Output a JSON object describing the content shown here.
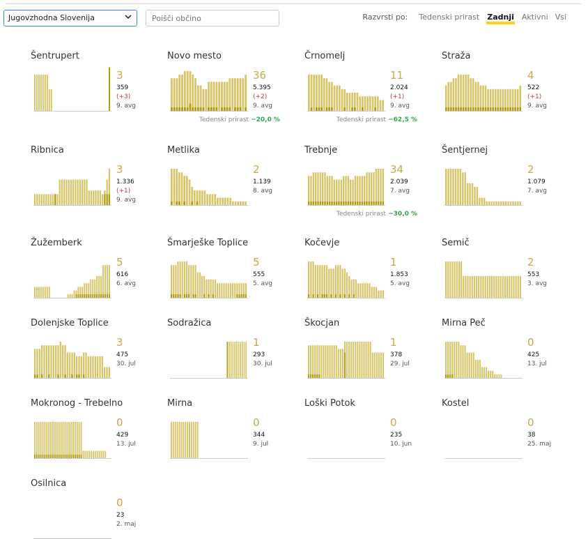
{
  "toolbar": {
    "region_value": "Jugovzhodna Slovenija",
    "search_placeholder": "Poišči občino",
    "sort_label": "Razvrsti po:",
    "sort_options": [
      "Tedenski prirast",
      "Zadnji",
      "Aktivni",
      "Vsi"
    ],
    "sort_active": "Zadnji"
  },
  "colors": {
    "bar": "#d6c569",
    "bar_dark": "#b59b14",
    "accent": "#f7d51d",
    "positive": "#2fa84f",
    "negative": "#b0413e"
  },
  "municipalities": [
    {
      "name": "Šentrupert",
      "active": "3",
      "total": "359",
      "delta": "(+3)",
      "note": "9. avg",
      "weekly_label": "",
      "weekly_value": "",
      "bars": [
        10,
        10,
        10,
        10,
        10,
        10,
        10,
        6,
        6,
        0,
        0,
        0,
        0,
        0,
        0,
        0,
        0,
        0,
        0,
        0,
        0,
        0,
        0,
        0,
        0,
        0,
        0,
        0,
        0,
        0,
        0,
        0,
        0,
        0,
        0,
        0,
        12
      ],
      "dark": [
        0,
        0,
        0,
        0,
        0,
        0,
        0,
        0,
        0,
        0,
        0,
        0,
        0,
        0,
        0,
        0,
        0,
        0,
        0,
        0,
        0,
        0,
        0,
        0,
        0,
        0,
        0,
        0,
        0,
        0,
        0,
        0,
        0,
        0,
        0,
        0,
        12
      ]
    },
    {
      "name": "Novo mesto",
      "active": "36",
      "total": "5.395",
      "delta": "(+2)",
      "note": "9. avg",
      "weekly_label": "Tedenski prirast",
      "weekly_value": "−20,0 %",
      "bars": [
        9,
        9,
        9,
        10,
        10,
        11,
        11,
        11,
        10,
        9,
        7,
        7,
        6,
        6,
        8,
        8,
        8,
        8,
        8,
        8,
        8,
        8,
        9,
        9,
        9,
        9,
        9,
        9,
        10
      ],
      "dark": [
        1,
        1,
        1,
        1,
        1,
        1,
        1,
        2,
        1,
        1,
        1,
        1,
        1,
        0,
        1,
        1,
        1,
        1,
        0,
        1,
        1,
        1,
        1,
        0,
        1,
        1,
        1,
        0,
        1
      ]
    },
    {
      "name": "Črnomelj",
      "active": "11",
      "total": "2.024",
      "delta": "(+1)",
      "note": "9. avg",
      "weekly_label": "Tedenski prirast",
      "weekly_value": "−62,5 %",
      "bars": [
        10,
        10,
        10,
        10,
        10,
        10,
        9,
        9,
        8,
        8,
        7,
        7,
        7,
        6,
        6,
        5,
        5,
        5,
        5,
        5,
        4,
        4,
        4,
        4,
        4,
        4,
        4,
        4,
        3,
        3
      ],
      "dark": [
        0,
        1,
        0,
        1,
        1,
        1,
        0,
        1,
        1,
        1,
        0,
        0,
        0,
        0,
        1,
        0,
        0,
        1,
        1,
        0,
        0,
        1,
        0,
        0,
        0,
        0,
        1,
        0,
        0,
        0
      ]
    },
    {
      "name": "Straža",
      "active": "4",
      "total": "522",
      "delta": "(+1)",
      "note": "9. avg",
      "weekly_label": "",
      "weekly_value": "",
      "bars": [
        7,
        8,
        8,
        9,
        9,
        10,
        10,
        10,
        10,
        10,
        9,
        9,
        8,
        8,
        7,
        7,
        7,
        6,
        6,
        6,
        6,
        6,
        6,
        6,
        6,
        6,
        6,
        6,
        6,
        6,
        7
      ],
      "dark": [
        1,
        1,
        1,
        1,
        1,
        1,
        1,
        1,
        1,
        1,
        1,
        1,
        1,
        1,
        1,
        1,
        1,
        1,
        1,
        1,
        1,
        1,
        1,
        1,
        1,
        1,
        1,
        1,
        1,
        1,
        1
      ]
    },
    {
      "name": "Ribnica",
      "active": "3",
      "total": "1.336",
      "delta": "(+1)",
      "note": "9. avg",
      "weekly_label": "",
      "weekly_value": "",
      "bars": [
        3,
        3,
        3,
        3,
        3,
        3,
        3,
        3,
        3,
        3,
        3,
        7,
        7,
        7,
        7,
        7,
        7,
        7,
        7,
        7,
        7,
        7,
        7,
        7,
        4,
        4,
        4,
        4,
        4,
        4,
        3,
        4,
        7,
        10
      ],
      "dark": [
        0,
        0,
        0,
        0,
        0,
        0,
        0,
        0,
        0,
        3,
        0,
        0,
        0,
        0,
        0,
        0,
        0,
        0,
        0,
        0,
        0,
        0,
        0,
        0,
        0,
        0,
        0,
        0,
        0,
        0,
        0,
        3,
        3,
        3
      ]
    },
    {
      "name": "Metlika",
      "active": "2",
      "total": "1.139",
      "delta": "",
      "note": "8. avg",
      "weekly_label": "",
      "weekly_value": "",
      "bars": [
        10,
        10,
        10,
        9,
        9,
        8,
        8,
        7,
        5,
        4,
        4,
        4,
        4,
        4,
        3,
        3,
        3,
        3,
        2,
        2,
        2,
        2,
        2,
        2,
        1,
        1,
        1,
        1,
        1,
        1
      ],
      "dark": [
        1,
        0,
        1,
        1,
        0,
        1,
        0,
        0,
        1,
        0,
        1,
        0,
        0,
        0,
        0,
        0,
        0,
        0,
        0,
        0,
        0,
        0,
        0,
        0,
        0,
        0,
        0,
        0,
        0,
        0
      ]
    },
    {
      "name": "Trebnje",
      "active": "34",
      "total": "2.039",
      "delta": "",
      "note": "7. avg",
      "weekly_label": "Tedenski prirast",
      "weekly_value": "−30,0 %",
      "bars": [
        8,
        8,
        9,
        9,
        9,
        9,
        9,
        9,
        8,
        8,
        8,
        7,
        7,
        7,
        7,
        8,
        8,
        8,
        7,
        7,
        8,
        8,
        8,
        8,
        8,
        9,
        9,
        9,
        9,
        10,
        10,
        10,
        10
      ],
      "dark": [
        1,
        1,
        1,
        1,
        1,
        1,
        1,
        1,
        1,
        1,
        1,
        1,
        1,
        1,
        1,
        1,
        1,
        1,
        1,
        1,
        1,
        1,
        1,
        1,
        1,
        1,
        1,
        1,
        1,
        1,
        1,
        1,
        1
      ]
    },
    {
      "name": "Šentjernej",
      "active": "2",
      "total": "1.079",
      "delta": "",
      "note": "7. avg",
      "weekly_label": "",
      "weekly_value": "",
      "bars": [
        10,
        10,
        10,
        10,
        10,
        10,
        10,
        9,
        9,
        6,
        6,
        6,
        5,
        5,
        2,
        2,
        2,
        1,
        1,
        1,
        1,
        1,
        1,
        1,
        1,
        1,
        1,
        1,
        1,
        1,
        1,
        1
      ],
      "dark": [
        0,
        0,
        0,
        0,
        0,
        0,
        0,
        0,
        0,
        0,
        0,
        0,
        0,
        0,
        0,
        0,
        0,
        0,
        0,
        0,
        0,
        0,
        0,
        0,
        0,
        0,
        0,
        0,
        0,
        0,
        0,
        0
      ]
    },
    {
      "name": "Žužemberk",
      "active": "5",
      "total": "616",
      "delta": "",
      "note": "6. avg",
      "weekly_label": "",
      "weekly_value": "",
      "bars": [
        3,
        3,
        3,
        3,
        3,
        3,
        3,
        3,
        0,
        0,
        0,
        0,
        0,
        0,
        0,
        0,
        1,
        1,
        1,
        2,
        2,
        3,
        3,
        3,
        4,
        4,
        4,
        5,
        5,
        5,
        6,
        6,
        6,
        9,
        9,
        9,
        9
      ],
      "dark": [
        0,
        0,
        0,
        0,
        0,
        0,
        0,
        0,
        0,
        0,
        0,
        0,
        0,
        0,
        0,
        0,
        0,
        0,
        0,
        0,
        1,
        1,
        1,
        1,
        1,
        1,
        1,
        1,
        1,
        1,
        1,
        1,
        1,
        1,
        1,
        1,
        1
      ]
    },
    {
      "name": "Šmarješke Toplice",
      "active": "5",
      "total": "555",
      "delta": "",
      "note": "5. avg",
      "weekly_label": "",
      "weekly_value": "",
      "bars": [
        9,
        9,
        9,
        10,
        10,
        10,
        10,
        10,
        9,
        9,
        9,
        9,
        7,
        7,
        6,
        6,
        5,
        5,
        5,
        5,
        5,
        4,
        4,
        4,
        4,
        4,
        4,
        4,
        4,
        4,
        4,
        4,
        4,
        4,
        4
      ],
      "dark": [
        1,
        1,
        1,
        1,
        1,
        0,
        1,
        1,
        1,
        0,
        1,
        1,
        0,
        0,
        0,
        1,
        0,
        1,
        0,
        1,
        0,
        0,
        0,
        0,
        0,
        0,
        0,
        0,
        0,
        0,
        1,
        1,
        1,
        1,
        1
      ]
    },
    {
      "name": "Kočevje",
      "active": "1",
      "total": "1.853",
      "delta": "",
      "note": "5. avg",
      "weekly_label": "",
      "weekly_value": "",
      "bars": [
        10,
        10,
        10,
        9,
        9,
        9,
        9,
        9,
        9,
        8,
        8,
        8,
        9,
        9,
        9,
        8,
        8,
        7,
        6,
        5,
        5,
        5,
        4,
        4,
        4,
        4,
        4,
        4,
        3,
        3,
        3,
        2,
        2,
        2
      ],
      "dark": [
        1,
        0,
        1,
        0,
        1,
        0,
        1,
        1,
        1,
        0,
        1,
        0,
        1,
        0,
        1,
        0,
        1,
        0,
        1,
        0,
        1,
        0,
        0,
        0,
        0,
        0,
        0,
        0,
        0,
        0,
        0,
        0,
        0,
        0
      ]
    },
    {
      "name": "Semič",
      "active": "2",
      "total": "553",
      "delta": "",
      "note": "3. avg",
      "weekly_label": "",
      "weekly_value": "",
      "bars": [
        10,
        10,
        10,
        10,
        10,
        10,
        10,
        10,
        6,
        6,
        6,
        6,
        6,
        6,
        6,
        6,
        6,
        6,
        6,
        6,
        6,
        6,
        6,
        6,
        6,
        6,
        6,
        6,
        6,
        6,
        6,
        6,
        6,
        6,
        6
      ],
      "dark": [
        0,
        0,
        0,
        0,
        0,
        0,
        0,
        0,
        0,
        0,
        0,
        0,
        0,
        0,
        0,
        0,
        0,
        0,
        0,
        0,
        0,
        0,
        0,
        0,
        0,
        0,
        0,
        0,
        0,
        0,
        0,
        0,
        0,
        0,
        0
      ]
    },
    {
      "name": "Dolenjske Toplice",
      "active": "3",
      "total": "475",
      "delta": "",
      "note": "30. jul",
      "weekly_label": "",
      "weekly_value": "",
      "bars": [
        8,
        8,
        8,
        9,
        9,
        9,
        9,
        9,
        9,
        9,
        9,
        10,
        9,
        9,
        7,
        7,
        7,
        7,
        6,
        6,
        6,
        7,
        7,
        6,
        6,
        6,
        6,
        6,
        6,
        6,
        3,
        3,
        3
      ],
      "dark": [
        1,
        1,
        0,
        1,
        0,
        0,
        1,
        0,
        0,
        0,
        1,
        0,
        0,
        1,
        0,
        0,
        1,
        0,
        1,
        1,
        0,
        1,
        0,
        0,
        0,
        0,
        0,
        0,
        0,
        0,
        0,
        0,
        0
      ]
    },
    {
      "name": "Sodražica",
      "active": "1",
      "total": "293",
      "delta": "",
      "note": "30. jul",
      "weekly_label": "",
      "weekly_value": "",
      "bars": [
        0,
        0,
        0,
        0,
        0,
        0,
        0,
        0,
        0,
        0,
        0,
        0,
        0,
        0,
        0,
        0,
        0,
        0,
        0,
        0,
        0,
        0,
        0,
        0,
        0,
        0,
        0,
        0,
        0,
        0,
        10,
        10,
        10,
        10,
        10,
        10,
        10,
        10,
        10,
        10,
        10
      ],
      "dark": [
        0,
        0,
        0,
        0,
        0,
        0,
        0,
        0,
        0,
        0,
        0,
        0,
        0,
        0,
        0,
        0,
        0,
        0,
        0,
        0,
        0,
        0,
        0,
        0,
        0,
        0,
        0,
        0,
        0,
        0,
        10,
        0,
        0,
        0,
        0,
        0,
        0,
        0,
        0,
        0,
        0
      ]
    },
    {
      "name": "Škocjan",
      "active": "1",
      "total": "378",
      "delta": "",
      "note": "29. jul",
      "weekly_label": "",
      "weekly_value": "",
      "bars": [
        9,
        9,
        9,
        9,
        9,
        9,
        9,
        9,
        9,
        9,
        9,
        9,
        9,
        9,
        8,
        8,
        8,
        10,
        10,
        10,
        10,
        10,
        10,
        10,
        10,
        10,
        10,
        10,
        10,
        10,
        7,
        7,
        7,
        7,
        7,
        7
      ],
      "dark": [
        1,
        1,
        1,
        1,
        1,
        1,
        0,
        0,
        0,
        0,
        0,
        0,
        0,
        0,
        0,
        0,
        0,
        7,
        0,
        0,
        0,
        0,
        0,
        0,
        0,
        0,
        0,
        0,
        0,
        0,
        0,
        0,
        0,
        0,
        0,
        0
      ]
    },
    {
      "name": "Mirna Peč",
      "active": "0",
      "total": "425",
      "delta": "",
      "note": "13. jul",
      "weekly_label": "",
      "weekly_value": "",
      "bars": [
        10,
        10,
        10,
        10,
        10,
        10,
        10,
        9,
        9,
        9,
        7,
        7,
        7,
        7,
        5,
        5,
        5,
        3,
        3,
        3,
        2,
        2,
        2,
        1,
        1,
        1,
        1,
        0,
        0,
        0,
        0,
        0,
        0,
        0,
        0,
        0
      ],
      "dark": [
        1,
        1,
        1,
        1,
        0,
        0,
        0,
        0,
        0,
        0,
        0,
        0,
        0,
        0,
        0,
        0,
        0,
        0,
        0,
        0,
        0,
        0,
        0,
        0,
        0,
        0,
        0,
        0,
        0,
        0,
        0,
        0,
        0,
        0,
        0,
        0
      ]
    },
    {
      "name": "Mokronog - Trebelno",
      "active": "0",
      "total": "429",
      "delta": "",
      "note": "13. jul",
      "weekly_label": "",
      "weekly_value": "",
      "bars": [
        10,
        10,
        10,
        10,
        10,
        10,
        10,
        10,
        10,
        10,
        10,
        10,
        10,
        10,
        10,
        10,
        10,
        10,
        10,
        10,
        10,
        10,
        10,
        10,
        2,
        2,
        2,
        2,
        2,
        2,
        2,
        2,
        2,
        2,
        2,
        2,
        0,
        0
      ],
      "dark": [
        1,
        1,
        1,
        1,
        1,
        1,
        1,
        1,
        1,
        1,
        1,
        1,
        1,
        1,
        1,
        1,
        1,
        1,
        1,
        1,
        1,
        1,
        1,
        1,
        0,
        0,
        0,
        0,
        0,
        0,
        0,
        0,
        0,
        0,
        0,
        0,
        0,
        0
      ]
    },
    {
      "name": "Mirna",
      "active": "0",
      "total": "344",
      "delta": "",
      "note": "9. jul",
      "weekly_label": "",
      "weekly_value": "",
      "bars": [
        10,
        10,
        10,
        10,
        10,
        10,
        10,
        10,
        10,
        10,
        10,
        10,
        10,
        10,
        0,
        0,
        0,
        0,
        0,
        0,
        0,
        0,
        0,
        0,
        0,
        0,
        0,
        0,
        0,
        0,
        0,
        0,
        0,
        0,
        0,
        0,
        0,
        0
      ],
      "dark": [
        0,
        0,
        0,
        0,
        0,
        0,
        0,
        0,
        0,
        0,
        0,
        0,
        0,
        0,
        0,
        0,
        0,
        0,
        0,
        0,
        0,
        0,
        0,
        0,
        0,
        0,
        0,
        0,
        0,
        0,
        0,
        0,
        0,
        0,
        0,
        0,
        0,
        0
      ]
    },
    {
      "name": "Loški Potok",
      "active": "0",
      "total": "235",
      "delta": "",
      "note": "10. jun",
      "weekly_label": "",
      "weekly_value": "",
      "bars": [],
      "dark": []
    },
    {
      "name": "Kostel",
      "active": "0",
      "total": "38",
      "delta": "",
      "note": "25. maj",
      "weekly_label": "",
      "weekly_value": "",
      "bars": [],
      "dark": []
    },
    {
      "name": "Osilnica",
      "active": "0",
      "total": "23",
      "delta": "",
      "note": "2. maj",
      "weekly_label": "",
      "weekly_value": "",
      "bars": [],
      "dark": []
    }
  ]
}
